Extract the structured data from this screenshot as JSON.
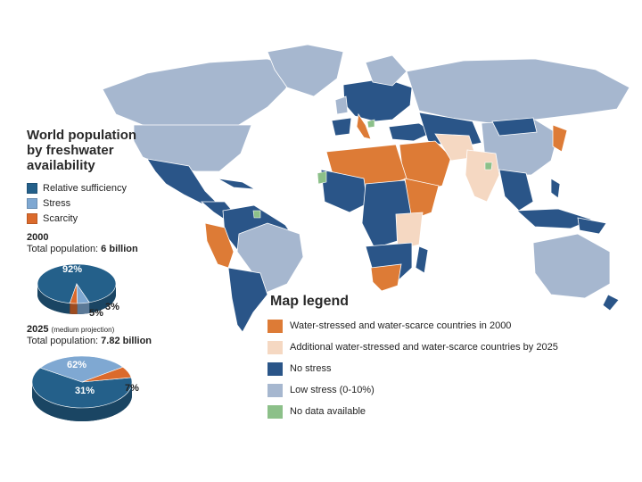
{
  "colors": {
    "ocean": "#ffffff",
    "scarce_2000": "#dd7b36",
    "additional_2025": "#f5d8c2",
    "no_stress": "#2a5588",
    "low_stress": "#a6b7cf",
    "no_data": "#8cc089",
    "relative_sufficiency": "#24608a",
    "stress": "#7fa8d2",
    "scarcity": "#db6a2c"
  },
  "side": {
    "title_lines": [
      "World population",
      "by freshwater",
      "availability"
    ],
    "legend": [
      {
        "label": "Relative sufficiency",
        "color": "#24608a"
      },
      {
        "label": "Stress",
        "color": "#7fa8d2"
      },
      {
        "label": "Scarcity",
        "color": "#db6a2c"
      }
    ]
  },
  "chart_data": [
    {
      "type": "pie",
      "year": "2000",
      "population_label": "Total population: ",
      "population_value": "6 billion",
      "slices": [
        {
          "label": "Relative sufficiency",
          "value": 92,
          "text": "92%"
        },
        {
          "label": "Stress",
          "value": 5,
          "text": "5%"
        },
        {
          "label": "Scarcity",
          "value": 3,
          "text": "3%"
        }
      ]
    },
    {
      "type": "pie",
      "year": "2025",
      "year_note": "(medium projection)",
      "population_label": "Total population: ",
      "population_value": "7.82 billion",
      "slices": [
        {
          "label": "Relative sufficiency",
          "value": 62,
          "text": "62%"
        },
        {
          "label": "Stress",
          "value": 31,
          "text": "31%"
        },
        {
          "label": "Scarcity",
          "value": 7,
          "text": "7%"
        }
      ]
    }
  ],
  "map_legend": {
    "title": "Map legend",
    "items": [
      {
        "label": "Water-stressed and water-scarce countries in 2000",
        "color": "#dd7b36"
      },
      {
        "label": "Additional water-stressed and water-scarce countries by 2025",
        "color": "#f5d8c2"
      },
      {
        "label": "No stress",
        "color": "#2a5588"
      },
      {
        "label": "Low stress (0-10%)",
        "color": "#a6b7cf"
      },
      {
        "label": "No data available",
        "color": "#8cc089"
      }
    ]
  }
}
